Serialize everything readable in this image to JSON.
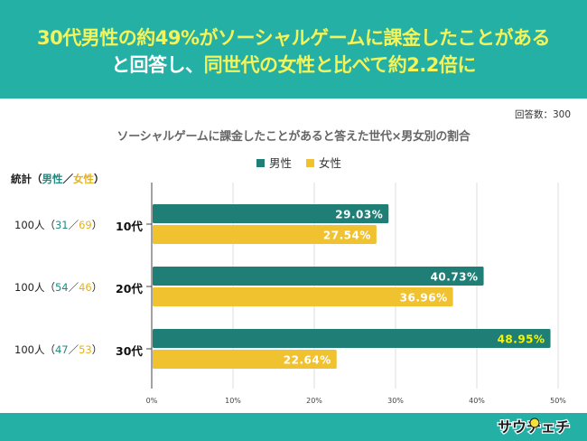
{
  "header": {
    "line1": "30代男性の約49%がソーシャルゲームに課金したことがある",
    "line2_white": "と回答し、",
    "line2_yellow": "同世代の女性と比べて約2.2倍に"
  },
  "respondents": "回答数：300",
  "stats": {
    "heading_prefix": "統計（",
    "heading_male": "男性",
    "heading_sep": "／",
    "heading_female": "女性",
    "heading_suffix": "）",
    "rows": [
      {
        "total": "100人（",
        "male": "31",
        "sep": "／",
        "female": "69",
        "close": "）"
      },
      {
        "total": "100人（",
        "male": "54",
        "sep": "／",
        "female": "46",
        "close": "）"
      },
      {
        "total": "100人（",
        "male": "47",
        "sep": "／",
        "female": "53",
        "close": "）"
      }
    ]
  },
  "colors": {
    "male": "#1f7f76",
    "female": "#f0c230",
    "header_bg": "#25b0a6",
    "highlight_label": "#f6f600"
  },
  "logo": {
    "text": "サウチェチ"
  },
  "chart_data": {
    "type": "bar",
    "orientation": "horizontal",
    "title": "ソーシャルゲームに課金したことがあると答えた世代×男女別の割合",
    "categories": [
      "10代",
      "20代",
      "30代"
    ],
    "series": [
      {
        "name": "男性",
        "values": [
          29.03,
          40.73,
          48.95
        ],
        "labels": [
          "29.03%",
          "40.73%",
          "48.95%"
        ]
      },
      {
        "name": "女性",
        "values": [
          27.54,
          36.96,
          22.64
        ],
        "labels": [
          "27.54%",
          "36.96%",
          "22.64%"
        ]
      }
    ],
    "highlight": {
      "series": 0,
      "index": 2
    },
    "xlim": [
      0,
      50
    ],
    "xticks": [
      0,
      10,
      20,
      30,
      40,
      50
    ],
    "xtick_labels": [
      "0%",
      "10%",
      "20%",
      "30%",
      "40%",
      "50%"
    ],
    "grid": true,
    "legend": "top-center",
    "xlabel": "",
    "ylabel": ""
  }
}
